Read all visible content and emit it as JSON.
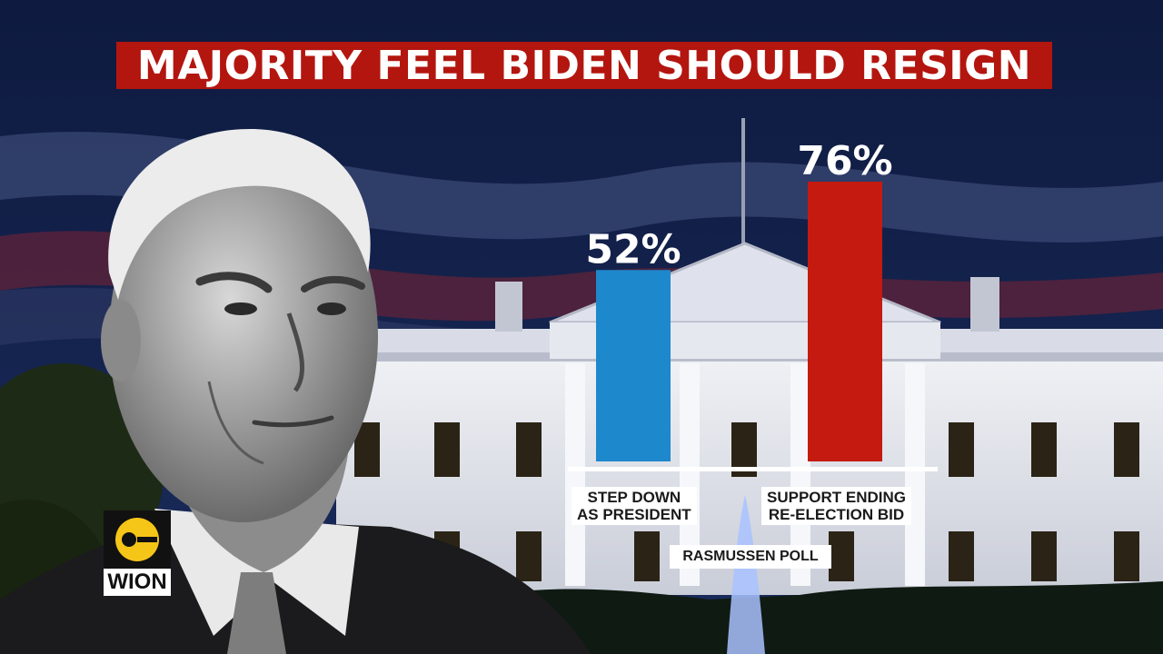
{
  "headline": "MAJORITY FEEL BIDEN SHOULD RESIGN",
  "source": "RASMUSSEN POLL",
  "logo": {
    "text": "WION"
  },
  "chart_data": {
    "type": "bar",
    "categories": [
      "STEP DOWN\nAS PRESIDENT",
      "SUPPORT ENDING\nRE-ELECTION BID"
    ],
    "values": [
      52,
      76
    ],
    "value_labels": [
      "52%",
      "76%"
    ],
    "colors": [
      "#1e88cc",
      "#c41a10"
    ],
    "ylim": [
      0,
      100
    ],
    "title": "MAJORITY FEEL BIDEN SHOULD RESIGN"
  }
}
